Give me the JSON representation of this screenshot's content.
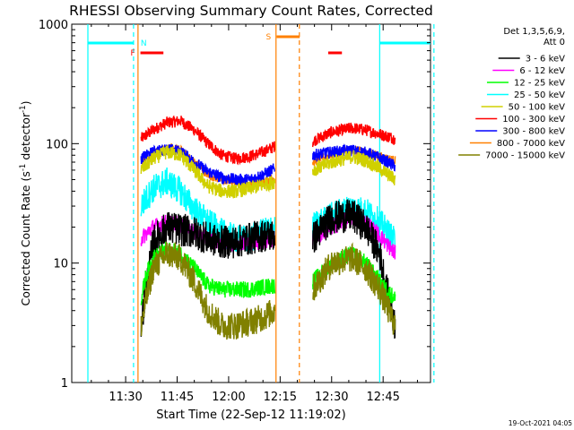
{
  "chart_data": {
    "type": "line",
    "title": "RHESSI Observing Summary Count Rates, Corrected",
    "xlabel": "Start Time (22-Sep-12 11:19:02)",
    "ylabel_parts": [
      "Corrected Count Rate (s",
      "-1",
      " detector",
      "-1",
      ")"
    ],
    "timestamp": "19-Oct-2021 04:05",
    "yscale": "log",
    "xlim_min": [
      19.0,
      94.0
    ],
    "ylim": [
      1,
      1000
    ],
    "x_ticks": [
      {
        "min": 30,
        "label": "11:30"
      },
      {
        "min": 45,
        "label": "11:45"
      },
      {
        "min": 60,
        "label": "12:00"
      },
      {
        "min": 75,
        "label": "12:15"
      },
      {
        "min": 90,
        "label": "12:30"
      },
      {
        "min": 105,
        "label": "12:45"
      }
    ],
    "y_ticks": [
      {
        "value": 1,
        "label": "1"
      },
      {
        "value": 10,
        "label": "10"
      },
      {
        "value": 100,
        "label": "100"
      },
      {
        "value": 1000,
        "label": "1000"
      }
    ],
    "legend": {
      "header": [
        "Det 1,3,5,6,9,",
        "Att 0"
      ],
      "position": "right",
      "entries": [
        {
          "label": "3 - 6 keV",
          "color": "#000000"
        },
        {
          "label": "6 - 12 keV",
          "color": "#ff00ff"
        },
        {
          "label": "12 - 25 keV",
          "color": "#00ff00"
        },
        {
          "label": "25 - 50 keV",
          "color": "#00ffff"
        },
        {
          "label": "50 - 100 keV",
          "color": "#d0d000"
        },
        {
          "label": "100 - 300 keV",
          "color": "#ff0000"
        },
        {
          "label": "300 - 800 keV",
          "color": "#0000ff"
        },
        {
          "label": "800 - 7000 keV",
          "color": "#ff8000"
        },
        {
          "label": "7000 - 15000 keV",
          "color": "#808000"
        }
      ]
    },
    "segments": [
      [
        34.5,
        73.5
      ],
      [
        84.5,
        108.5
      ]
    ],
    "series": [
      {
        "name": "100 - 300 keV",
        "color": "#ff0000",
        "noise": 0.05,
        "points": [
          [
            34.5,
            110
          ],
          [
            38,
            130
          ],
          [
            42,
            150
          ],
          [
            46,
            155
          ],
          [
            50,
            130
          ],
          [
            54,
            100
          ],
          [
            58,
            80
          ],
          [
            62,
            75
          ],
          [
            66,
            78
          ],
          [
            70,
            85
          ],
          [
            73.5,
            95
          ],
          [
            84.5,
            105
          ],
          [
            90,
            125
          ],
          [
            96,
            135
          ],
          [
            100,
            130
          ],
          [
            104,
            120
          ],
          [
            108.5,
            110
          ]
        ]
      },
      {
        "name": "800 - 7000 keV",
        "color": "#ff8000",
        "noise": 0.04,
        "points": [
          [
            34.5,
            70
          ],
          [
            38,
            82
          ],
          [
            42,
            92
          ],
          [
            46,
            88
          ],
          [
            50,
            70
          ],
          [
            54,
            55
          ],
          [
            58,
            50
          ],
          [
            62,
            48
          ],
          [
            66,
            46
          ],
          [
            70,
            48
          ],
          [
            73.5,
            52
          ],
          [
            84.5,
            70
          ],
          [
            90,
            82
          ],
          [
            96,
            88
          ],
          [
            100,
            85
          ],
          [
            104,
            78
          ],
          [
            108.5,
            72
          ]
        ]
      },
      {
        "name": "300 - 800 keV",
        "color": "#0000ff",
        "noise": 0.05,
        "points": [
          [
            34.5,
            75
          ],
          [
            38,
            85
          ],
          [
            42,
            90
          ],
          [
            46,
            86
          ],
          [
            50,
            70
          ],
          [
            54,
            58
          ],
          [
            58,
            52
          ],
          [
            62,
            50
          ],
          [
            66,
            50
          ],
          [
            70,
            55
          ],
          [
            73.5,
            62
          ],
          [
            84.5,
            80
          ],
          [
            90,
            85
          ],
          [
            96,
            88
          ],
          [
            100,
            84
          ],
          [
            104,
            76
          ],
          [
            108.5,
            65
          ]
        ]
      },
      {
        "name": "50 - 100 keV",
        "color": "#d0d000",
        "noise": 0.06,
        "points": [
          [
            34.5,
            60
          ],
          [
            38,
            75
          ],
          [
            42,
            85
          ],
          [
            46,
            80
          ],
          [
            50,
            60
          ],
          [
            54,
            44
          ],
          [
            58,
            40
          ],
          [
            62,
            40
          ],
          [
            66,
            42
          ],
          [
            70,
            45
          ],
          [
            73.5,
            48
          ],
          [
            84.5,
            60
          ],
          [
            90,
            70
          ],
          [
            96,
            78
          ],
          [
            100,
            72
          ],
          [
            104,
            62
          ],
          [
            108.5,
            50
          ]
        ]
      },
      {
        "name": "25 - 50 keV",
        "color": "#00ffff",
        "noise": 0.12,
        "points": [
          [
            34.5,
            30
          ],
          [
            38,
            42
          ],
          [
            42,
            48
          ],
          [
            46,
            40
          ],
          [
            50,
            28
          ],
          [
            54,
            22
          ],
          [
            58,
            18
          ],
          [
            62,
            16
          ],
          [
            66,
            16
          ],
          [
            70,
            18
          ],
          [
            73.5,
            20
          ],
          [
            84.5,
            20
          ],
          [
            90,
            25
          ],
          [
            96,
            29
          ],
          [
            100,
            27
          ],
          [
            104,
            22
          ],
          [
            108.5,
            15
          ]
        ]
      },
      {
        "name": "6 - 12 keV",
        "color": "#ff00ff",
        "noise": 0.07,
        "points": [
          [
            34.5,
            16
          ],
          [
            38,
            20
          ],
          [
            42,
            22
          ],
          [
            46,
            21
          ],
          [
            50,
            18
          ],
          [
            54,
            16
          ],
          [
            58,
            15
          ],
          [
            62,
            15
          ],
          [
            66,
            15
          ],
          [
            70,
            15
          ],
          [
            73.5,
            16
          ],
          [
            84.5,
            16
          ],
          [
            90,
            20
          ],
          [
            96,
            24
          ],
          [
            100,
            22
          ],
          [
            104,
            17
          ],
          [
            108.5,
            12
          ]
        ]
      },
      {
        "name": "3 - 6 keV",
        "color": "#000000",
        "noise": 0.14,
        "points": [
          [
            34.5,
            3.2
          ],
          [
            36,
            6
          ],
          [
            38,
            15
          ],
          [
            42,
            20
          ],
          [
            46,
            19
          ],
          [
            50,
            18
          ],
          [
            54,
            16
          ],
          [
            58,
            15
          ],
          [
            62,
            15
          ],
          [
            66,
            16
          ],
          [
            70,
            17
          ],
          [
            73.5,
            17
          ],
          [
            84.5,
            16
          ],
          [
            90,
            24
          ],
          [
            96,
            25
          ],
          [
            100,
            20
          ],
          [
            104,
            12
          ],
          [
            106,
            6
          ],
          [
            108.5,
            3
          ]
        ]
      },
      {
        "name": "12 - 25 keV",
        "color": "#00ff00",
        "noise": 0.07,
        "points": [
          [
            34.5,
            5
          ],
          [
            36,
            8
          ],
          [
            38,
            11
          ],
          [
            42,
            13
          ],
          [
            46,
            12
          ],
          [
            50,
            9
          ],
          [
            54,
            6.5
          ],
          [
            58,
            6
          ],
          [
            62,
            6
          ],
          [
            66,
            6
          ],
          [
            70,
            6.3
          ],
          [
            73.5,
            6.5
          ],
          [
            84.5,
            7
          ],
          [
            90,
            10
          ],
          [
            96,
            12
          ],
          [
            100,
            10
          ],
          [
            104,
            7
          ],
          [
            108.5,
            5
          ]
        ]
      },
      {
        "name": "7000 - 15000 keV",
        "color": "#808000",
        "noise": 0.12,
        "points": [
          [
            34.5,
            3
          ],
          [
            36,
            5
          ],
          [
            38,
            9
          ],
          [
            42,
            12
          ],
          [
            46,
            11
          ],
          [
            50,
            7
          ],
          [
            54,
            4
          ],
          [
            58,
            3
          ],
          [
            62,
            3
          ],
          [
            66,
            3.2
          ],
          [
            70,
            3.5
          ],
          [
            73.5,
            4
          ],
          [
            84.5,
            6
          ],
          [
            90,
            10
          ],
          [
            96,
            11
          ],
          [
            100,
            9
          ],
          [
            104,
            6
          ],
          [
            108.5,
            3
          ]
        ]
      }
    ],
    "night_bars": [
      [
        19.0,
        32.3
      ],
      [
        104.0,
        119.8
      ]
    ],
    "night_label": "N",
    "flare_label": "F",
    "flare_bar": [
      34.3,
      41.0
    ],
    "flare_bar_2": [
      89.0,
      93.0
    ],
    "saa_label": "S",
    "saa_bar": [
      74.0,
      80.7
    ],
    "cyan_solid_lines": [
      19.0,
      104.0
    ],
    "cyan_dashed_lines": [
      32.3,
      119.8
    ],
    "orange_solid_lines": [
      33.6,
      73.8
    ],
    "orange_dashed_lines": [
      80.6
    ]
  }
}
